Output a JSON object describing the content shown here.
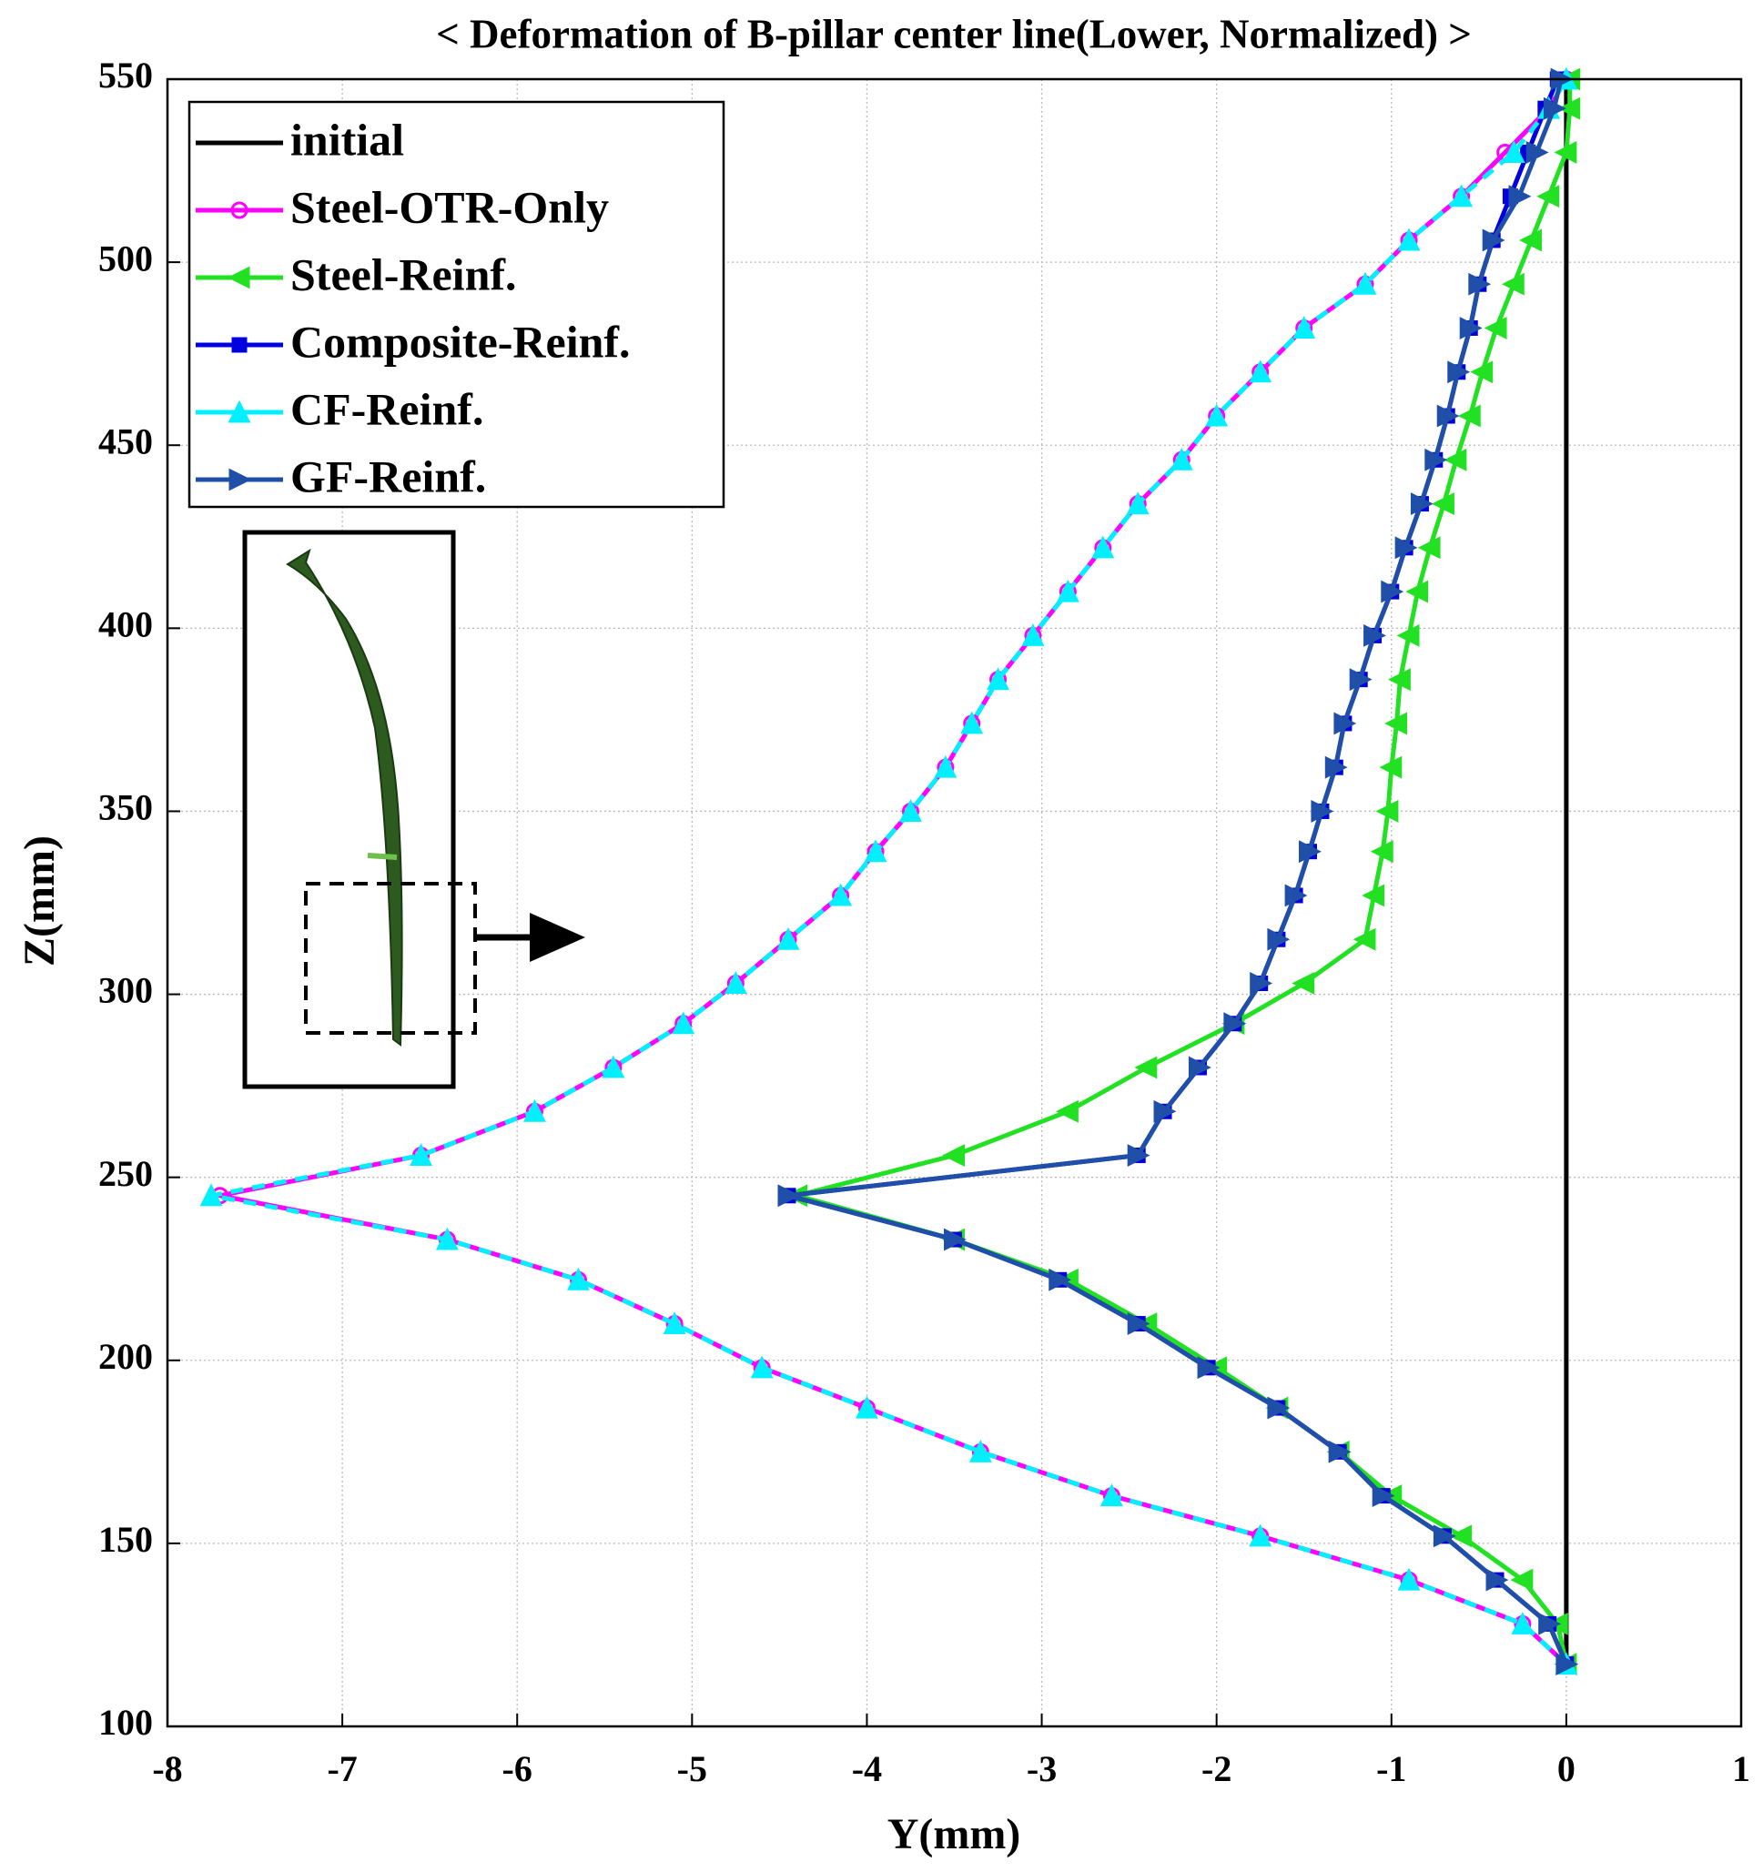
{
  "chart_data": {
    "type": "line",
    "title": "< Deformation of B-pillar center line(Lower, Normalized) >",
    "x_label": "Y(mm)",
    "y_label": "Z(mm)",
    "xlim": [
      -8,
      1
    ],
    "xticks": [
      -8,
      -7,
      -6,
      -5,
      -4,
      -3,
      -2,
      -1,
      0,
      1
    ],
    "ylim": [
      100,
      550
    ],
    "yticks": [
      100,
      150,
      200,
      250,
      300,
      350,
      400,
      450,
      500,
      550
    ],
    "grid": true,
    "legend": "upper left",
    "series": [
      {
        "name": "initial",
        "color": "#000000",
        "marker": "none",
        "line_style": "-",
        "x": [
          0,
          0
        ],
        "values": [
          117,
          550
        ]
      },
      {
        "name": "Steel-OTR-Only",
        "color": "#ff00ff",
        "marker": "o",
        "line_style": "-",
        "x": [
          0,
          -0.25,
          -0.9,
          -1.75,
          -2.6,
          -3.35,
          -4.0,
          -4.6,
          -5.1,
          -5.65,
          -6.4,
          -7.7,
          -6.55,
          -5.9,
          -5.45,
          -5.05,
          -4.75,
          -4.45,
          -4.15,
          -3.95,
          -3.75,
          -3.55,
          -3.4,
          -3.25,
          -3.05,
          -2.85,
          -2.65,
          -2.45,
          -2.2,
          -2.0,
          -1.75,
          -1.5,
          -1.15,
          -0.9,
          -0.6,
          -0.35,
          -0.1,
          0
        ],
        "values": [
          117,
          128,
          140,
          152,
          163,
          175,
          187,
          198,
          210,
          222,
          233,
          245,
          256,
          268,
          280,
          292,
          303,
          315,
          327,
          339,
          350,
          362,
          374,
          386,
          398,
          410,
          422,
          434,
          446,
          458,
          470,
          482,
          494,
          506,
          518,
          530,
          542,
          550
        ]
      },
      {
        "name": "Steel-Reinf.",
        "color": "#22e022",
        "marker": "<",
        "line_style": "-",
        "x": [
          0,
          -0.05,
          -0.25,
          -0.6,
          -1.0,
          -1.3,
          -1.65,
          -2.0,
          -2.4,
          -2.85,
          -3.5,
          -4.4,
          -3.5,
          -2.85,
          -2.4,
          -1.9,
          -1.5,
          -1.15,
          -1.1,
          -1.05,
          -1.02,
          -1.0,
          -0.97,
          -0.95,
          -0.9,
          -0.85,
          -0.78,
          -0.7,
          -0.63,
          -0.55,
          -0.48,
          -0.4,
          -0.3,
          -0.2,
          -0.1,
          0,
          0.02,
          0.02
        ],
        "values": [
          117,
          128,
          140,
          152,
          163,
          175,
          187,
          198,
          210,
          222,
          233,
          245,
          256,
          268,
          280,
          292,
          303,
          315,
          327,
          339,
          350,
          362,
          374,
          386,
          398,
          410,
          422,
          434,
          446,
          458,
          470,
          482,
          494,
          506,
          518,
          530,
          542,
          550
        ]
      },
      {
        "name": "Composite-Reinf.",
        "color": "#0000e0",
        "marker": "s",
        "line_style": "-",
        "x": [
          0,
          -0.1,
          -0.4,
          -0.7,
          -1.05,
          -1.3,
          -1.65,
          -2.05,
          -2.45,
          -2.9,
          -3.5,
          -4.45,
          -2.45,
          -2.3,
          -2.1,
          -1.9,
          -1.75,
          -1.65,
          -1.55,
          -1.47,
          -1.4,
          -1.32,
          -1.27,
          -1.18,
          -1.1,
          -1.0,
          -0.92,
          -0.83,
          -0.75,
          -0.68,
          -0.62,
          -0.55,
          -0.5,
          -0.42,
          -0.32,
          -0.22,
          -0.12,
          -0.05
        ],
        "values": [
          117,
          128,
          140,
          152,
          163,
          175,
          187,
          198,
          210,
          222,
          233,
          245,
          256,
          268,
          280,
          292,
          303,
          315,
          327,
          339,
          350,
          362,
          374,
          386,
          398,
          410,
          422,
          434,
          446,
          458,
          470,
          482,
          494,
          506,
          518,
          530,
          542,
          550
        ]
      },
      {
        "name": "CF-Reinf.",
        "color": "#00f0ff",
        "marker": "^",
        "line_style": "--",
        "x": [
          0,
          -0.25,
          -0.9,
          -1.75,
          -2.6,
          -3.35,
          -4.0,
          -4.6,
          -5.1,
          -5.65,
          -6.4,
          -7.75,
          -6.55,
          -5.9,
          -5.45,
          -5.05,
          -4.75,
          -4.45,
          -4.15,
          -3.95,
          -3.75,
          -3.55,
          -3.4,
          -3.25,
          -3.05,
          -2.85,
          -2.65,
          -2.45,
          -2.2,
          -2.0,
          -1.75,
          -1.5,
          -1.15,
          -0.9,
          -0.6,
          -0.3,
          -0.1,
          0
        ],
        "values": [
          117,
          128,
          140,
          152,
          163,
          175,
          187,
          198,
          210,
          222,
          233,
          245,
          256,
          268,
          280,
          292,
          303,
          315,
          327,
          339,
          350,
          362,
          374,
          386,
          398,
          410,
          422,
          434,
          446,
          458,
          470,
          482,
          494,
          506,
          518,
          530,
          542,
          550
        ]
      },
      {
        "name": "GF-Reinf.",
        "color": "#1f4fa8",
        "marker": ">",
        "line_style": "-",
        "x": [
          0,
          -0.1,
          -0.4,
          -0.7,
          -1.05,
          -1.3,
          -1.65,
          -2.05,
          -2.45,
          -2.9,
          -3.5,
          -4.45,
          -2.45,
          -2.3,
          -2.1,
          -1.9,
          -1.75,
          -1.65,
          -1.55,
          -1.47,
          -1.4,
          -1.32,
          -1.27,
          -1.18,
          -1.1,
          -1.0,
          -0.92,
          -0.83,
          -0.75,
          -0.68,
          -0.62,
          -0.55,
          -0.5,
          -0.42,
          -0.27,
          -0.17,
          -0.07,
          -0.03
        ],
        "values": [
          117,
          128,
          140,
          152,
          163,
          175,
          187,
          198,
          210,
          222,
          233,
          245,
          256,
          268,
          280,
          292,
          303,
          315,
          327,
          339,
          350,
          362,
          374,
          386,
          398,
          410,
          422,
          434,
          446,
          458,
          470,
          482,
          494,
          506,
          518,
          530,
          542,
          550
        ]
      }
    ]
  }
}
